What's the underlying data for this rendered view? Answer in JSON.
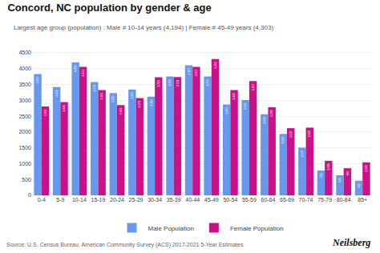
{
  "chart_data": {
    "type": "bar",
    "title": "Concord, NC population by gender & age",
    "subtitle": "Largest age group (population) : Male # 10-14 years (4,194) | Female # 45-49 years (4,303)",
    "annotations": [
      "Source: U.S. Census Bureau, American Community Survey (ACS) 2017-2021 5-Year Estimates",
      "Neilsberg"
    ],
    "categories": [
      "0-4",
      "5-9",
      "10-14",
      "15-19",
      "20-24",
      "25-29",
      "30-34",
      "35-39",
      "40-44",
      "45-49",
      "50-54",
      "55-59",
      "60-64",
      "65-69",
      "70-74",
      "75-79",
      "80-84",
      "85+"
    ],
    "series": [
      {
        "name": "Male Population",
        "color": "#6699EE",
        "values": [
          3827,
          3420,
          4194,
          3574,
          3230,
          3340,
          3114,
          3750,
          4107,
          3750,
          2867,
          3004,
          2560,
          1938,
          1507,
          786,
          634,
          461
        ],
        "value_labels": [
          "3,827",
          "3,420",
          "4,194",
          "3,574",
          "3,230",
          "3,340",
          "3,114",
          "3,750",
          "4,107",
          "3,750",
          "2,867",
          "3,004",
          "2,560",
          "1,938",
          "1,507",
          "786",
          "634",
          "461"
        ]
      },
      {
        "name": "Female Population",
        "color": "#CC1188",
        "values": [
          2802,
          2941,
          4054,
          3324,
          2849,
          3071,
          3724,
          3731,
          4057,
          4303,
          3320,
          3607,
          2780,
          2120,
          2138,
          1091,
          856,
          1042
        ],
        "value_labels": [
          "2,802",
          "2,941",
          "4,054",
          "3,324",
          "2,849",
          "3,071",
          "3,724",
          "3,731",
          "4,057",
          "4,303",
          "3,320",
          "3,607",
          "2,780",
          "2,120",
          "2,138",
          "1,091",
          "856",
          "1,042"
        ]
      }
    ],
    "ylim": [
      0,
      4700
    ],
    "yticks": [
      0,
      500,
      1000,
      1500,
      2000,
      2500,
      3000,
      3500,
      4000,
      4500
    ],
    "grid": true,
    "legend": "bottom",
    "data_labels": true
  }
}
